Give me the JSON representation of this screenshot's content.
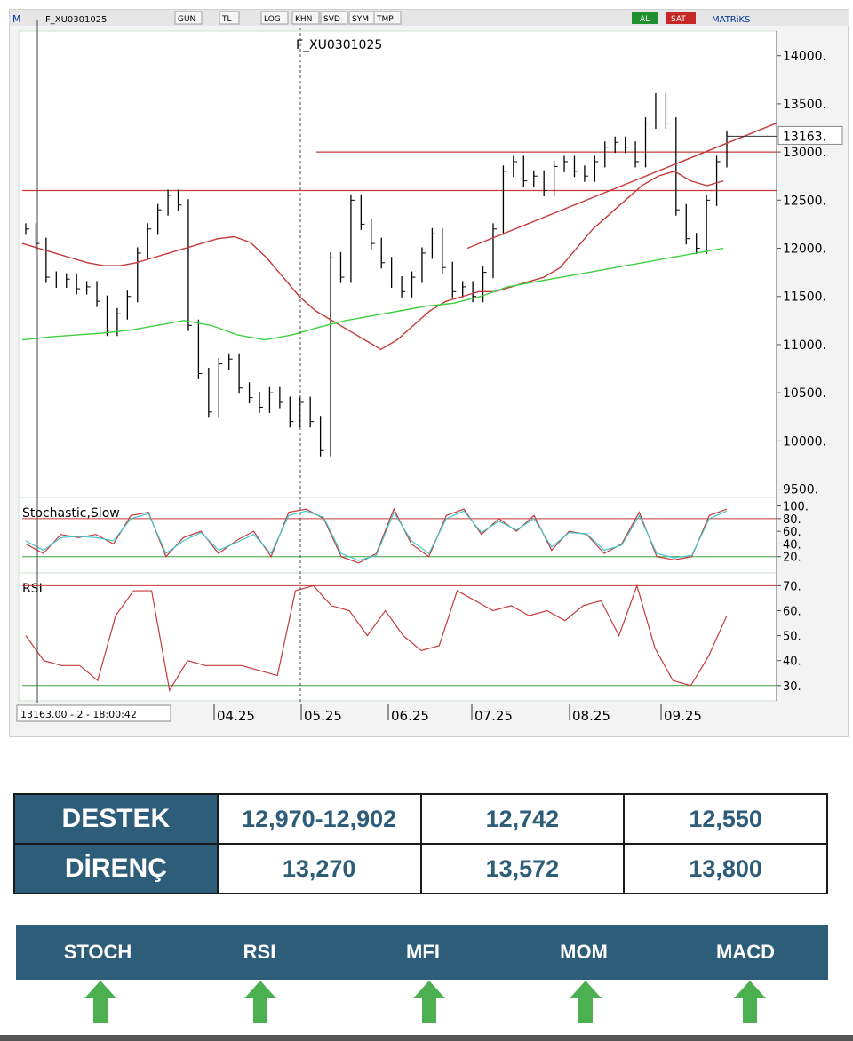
{
  "toolbar": {
    "symbol": "F_XU0301025",
    "buttons": [
      "GUN",
      "TL",
      "LOG",
      "KHN",
      "SVD",
      "SYM",
      "TMP"
    ],
    "al_label": "AL",
    "sat_label": "SAT",
    "brand": "MATRiKS",
    "menu_letter": "M"
  },
  "status_readout": "13163.00 - 2 - 18:00:42",
  "chart_data": [
    {
      "type": "candlestick",
      "title": "F_XU0301025",
      "price_label": "13163.",
      "y_ticks": [
        "14000.",
        "13500.",
        "13000.",
        "12500.",
        "12000.",
        "11500.",
        "11000.",
        "10500.",
        "10000.",
        "9500."
      ],
      "ylim": [
        9450,
        14200
      ],
      "x_ticks": [
        "04.25",
        "05.25",
        "06.25",
        "07.25",
        "08.25",
        "09.25"
      ],
      "horizontal_levels": [
        13000,
        12600
      ],
      "close": [
        12200,
        12050,
        11700,
        11650,
        11680,
        11580,
        11600,
        11450,
        11150,
        11320,
        11500,
        11950,
        12200,
        12400,
        12550,
        12450,
        11200,
        10700,
        10300,
        10800,
        10850,
        10550,
        10450,
        10350,
        10500,
        10400,
        10200,
        10400,
        10200,
        9900,
        11900,
        11700,
        12500,
        12250,
        12050,
        11850,
        11650,
        11550,
        11700,
        11950,
        12150,
        11800,
        11550,
        11600,
        11500,
        11750,
        12200,
        12800,
        12900,
        12700,
        12750,
        12600,
        12850,
        12900,
        12800,
        12750,
        12900,
        13050,
        13100,
        13050,
        12900,
        13300,
        13550,
        13300,
        12400,
        12100,
        12000,
        12500,
        12900,
        13163
      ],
      "series": [
        {
          "values": [
            12050,
            12000,
            11950,
            11900,
            11850,
            11820,
            11820,
            11850,
            11900,
            11950,
            12000,
            12050,
            12100,
            12120,
            12060,
            11900,
            11700,
            11500,
            11350,
            11250,
            11150,
            11050,
            10950,
            11050,
            11200,
            11350,
            11450,
            11500,
            11550,
            11550,
            11600,
            11650,
            11700,
            11800,
            12000,
            12200,
            12350,
            12500,
            12650,
            12750,
            12800,
            12700,
            12650,
            12700
          ],
          "color": "#c63a3a"
        },
        {
          "values": [
            11050,
            11080,
            11100,
            11120,
            11150,
            11200,
            11250,
            11200,
            11100,
            11050,
            11100,
            11180,
            11250,
            11300,
            11350,
            11400,
            11430,
            11500,
            11600,
            11650,
            11700,
            11750,
            11800,
            11850,
            11900,
            11950,
            12000
          ],
          "color": "#3fcf3f"
        },
        {
          "values": [
            12000,
            13300
          ],
          "color": "#c63a3a"
        }
      ]
    },
    {
      "type": "line",
      "title": "Stochastic,Slow",
      "y_ticks": [
        "100.",
        "80.",
        "60.",
        "40.",
        "20."
      ],
      "ylim": [
        0,
        105
      ],
      "levels": [
        80,
        20
      ],
      "series": [
        {
          "values": [
            40,
            25,
            55,
            50,
            55,
            40,
            85,
            90,
            20,
            50,
            60,
            25,
            45,
            60,
            20,
            90,
            95,
            80,
            20,
            10,
            25,
            95,
            40,
            20,
            85,
            95,
            55,
            80,
            60,
            85,
            30,
            60,
            55,
            25,
            40,
            90,
            20,
            15,
            20,
            85,
            95
          ],
          "color": "#c63a3a"
        },
        {
          "values": [
            45,
            30,
            50,
            52,
            50,
            45,
            80,
            88,
            25,
            45,
            58,
            30,
            42,
            55,
            25,
            85,
            92,
            82,
            25,
            14,
            22,
            90,
            45,
            25,
            80,
            92,
            58,
            76,
            62,
            80,
            35,
            58,
            56,
            30,
            38,
            85,
            25,
            18,
            22,
            80,
            92
          ],
          "color": "#3fc8cf"
        }
      ]
    },
    {
      "type": "line",
      "title": "RSI",
      "y_ticks": [
        "70.",
        "60.",
        "50.",
        "40.",
        "30."
      ],
      "ylim": [
        26,
        73
      ],
      "levels": [
        70,
        30
      ],
      "series": [
        {
          "values": [
            50,
            40,
            38,
            38,
            32,
            58,
            68,
            68,
            28,
            40,
            38,
            38,
            38,
            36,
            34,
            68,
            70,
            62,
            60,
            50,
            60,
            50,
            44,
            46,
            68,
            64,
            60,
            62,
            58,
            60,
            56,
            62,
            64,
            50,
            70,
            45,
            32,
            30,
            42,
            58
          ],
          "color": "#c63a3a"
        }
      ]
    }
  ],
  "levels_table": {
    "support_label": "DESTEK",
    "resistance_label": "DİRENÇ",
    "support": [
      "12,970-12,902",
      "12,742",
      "12,550"
    ],
    "resistance": [
      "13,270",
      "13,572",
      "13,800"
    ]
  },
  "indicators": {
    "labels": [
      "STOCH",
      "RSI",
      "MFI",
      "MOM",
      "MACD"
    ],
    "signals": [
      "up",
      "up",
      "up",
      "up",
      "up"
    ],
    "arrow_color": "#4caf50"
  }
}
